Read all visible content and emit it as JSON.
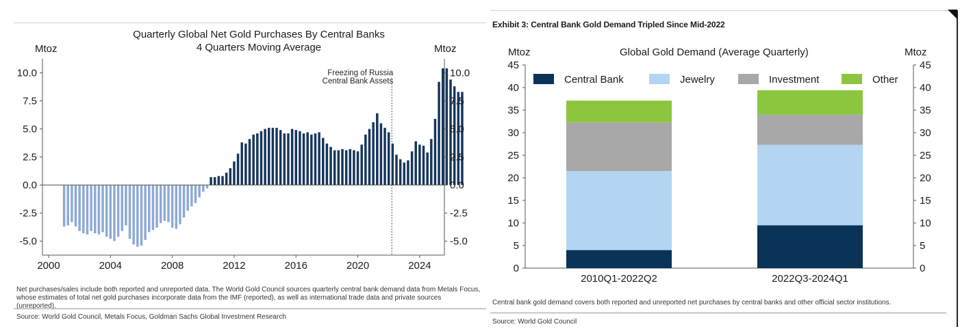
{
  "left": {
    "title_line1": "Quarterly Global Net Gold Purchases By Central Banks",
    "title_line2": "4 Quarters Moving Average",
    "unit_left": "Mtoz",
    "unit_right": "Mtoz",
    "annotation_line1": "Freezing of Russia",
    "annotation_line2": "Central Bank Assets",
    "note": "Net purchases/sales include both reported and unreported data. The World Gold Council sources quarterly central bank demand data from Metals Focus, whose estimates of total net gold purchases incorporate data from the IMF (reported), as well as international trade data and private sources (unreported).",
    "source": "Source: World Gold Council, Metals Focus, Goldman Sachs Global Investment Research"
  },
  "right": {
    "exhibit_title": "Exhibit 3: Central Bank Gold Demand Tripled Since Mid-2022",
    "chart_title": "Global Gold Demand (Average Quarterly)",
    "unit_left": "Mtoz",
    "unit_right": "Mtoz",
    "note": "Central bank gold demand covers both reported and unreported net purchases by central banks and other official sector institutions.",
    "source": "Source: World Gold Council"
  },
  "chart_data": [
    {
      "type": "bar",
      "title": "Quarterly Global Net Gold Purchases By Central Banks",
      "subtitle": "4 Quarters Moving Average",
      "ylabel": "Mtoz",
      "ylim": [
        -6.25,
        11.25
      ],
      "yticks": [
        -5.0,
        -2.5,
        0.0,
        2.5,
        5.0,
        7.5,
        10.0
      ],
      "ytick_labels": [
        "-5.0",
        "-2.5",
        "0.0",
        "2.5",
        "5.0",
        "7.5",
        "10.0"
      ],
      "xlim": [
        1999.6,
        2025.6
      ],
      "xticks": [
        2000,
        2004,
        2008,
        2012,
        2016,
        2020,
        2024
      ],
      "xtick_labels": [
        "2000",
        "2004",
        "2008",
        "2012",
        "2016",
        "2020",
        "2024"
      ],
      "start_year": 2001.0,
      "quarter_step": 0.25,
      "annotation_x": 2022.2,
      "colors": {
        "negative": "#8eaad6",
        "positive": "#17365d"
      },
      "values": [
        -3.7,
        -3.6,
        -3.3,
        -3.7,
        -4.1,
        -4.3,
        -4.4,
        -4.1,
        -4.3,
        -4.4,
        -4.2,
        -4.6,
        -4.8,
        -5.0,
        -4.6,
        -4.1,
        -3.6,
        -4.8,
        -5.3,
        -5.5,
        -5.4,
        -4.9,
        -4.2,
        -4.0,
        -3.8,
        -3.4,
        -3.2,
        -3.3,
        -3.8,
        -3.9,
        -3.5,
        -2.9,
        -2.3,
        -1.9,
        -1.6,
        -1.1,
        -0.6,
        -0.3,
        0.7,
        0.7,
        0.8,
        0.8,
        1.1,
        1.5,
        2.1,
        2.8,
        3.8,
        3.7,
        4.1,
        4.5,
        4.6,
        4.8,
        5.0,
        5.1,
        5.1,
        5.1,
        4.9,
        4.6,
        4.6,
        5.0,
        4.9,
        4.8,
        4.6,
        4.7,
        4.5,
        4.6,
        4.7,
        4.2,
        3.7,
        3.4,
        3.1,
        3.1,
        3.2,
        3.1,
        3.2,
        3.1,
        3.0,
        3.6,
        4.5,
        5.0,
        5.6,
        6.4,
        5.5,
        5.1,
        4.7,
        3.7,
        2.7,
        2.3,
        2.0,
        2.2,
        3.0,
        3.9,
        3.6,
        3.5,
        2.9,
        4.1,
        5.9,
        9.2,
        10.4,
        10.4,
        9.4,
        8.8,
        8.3,
        8.3
      ]
    },
    {
      "type": "bar",
      "stacked": true,
      "title": "Global Gold Demand (Average Quarterly)",
      "ylabel": "Mtoz",
      "ylim": [
        0,
        45
      ],
      "yticks": [
        0,
        5,
        10,
        15,
        20,
        25,
        30,
        35,
        40,
        45
      ],
      "categories": [
        "2010Q1-2022Q2",
        "2022Q3-2024Q1"
      ],
      "legend_position": "top",
      "series": [
        {
          "name": "Central Bank",
          "color": "#0a3358",
          "values": [
            4.0,
            9.5
          ]
        },
        {
          "name": "Jewelry",
          "color": "#b3d5f2",
          "values": [
            17.5,
            17.8
          ]
        },
        {
          "name": "Investment",
          "color": "#a8a8a8",
          "values": [
            10.8,
            6.7
          ]
        },
        {
          "name": "Other",
          "color": "#8cc63f",
          "values": [
            4.8,
            5.4
          ]
        }
      ]
    }
  ]
}
